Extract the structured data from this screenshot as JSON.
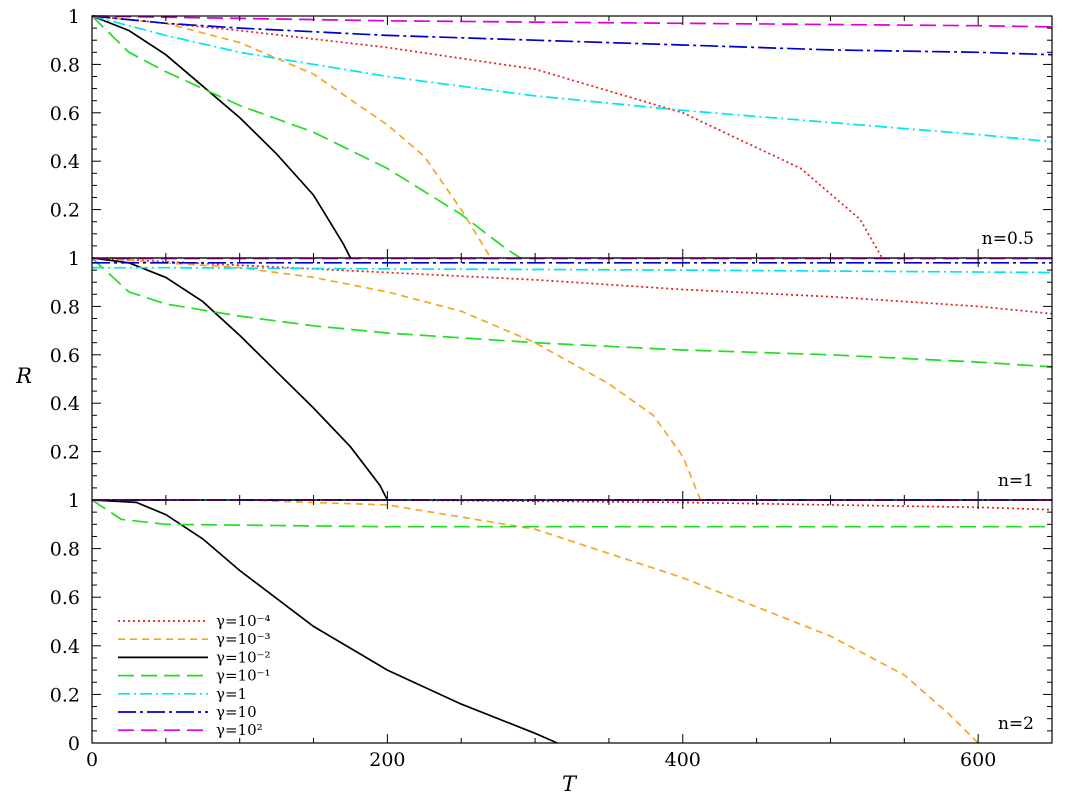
{
  "chart_data": {
    "type": "line",
    "xlabel": "T",
    "ylabel": "R",
    "xlim": [
      0,
      650
    ],
    "x_ticks": [
      "0",
      "200",
      "400",
      "600"
    ],
    "y_ticks": [
      "0",
      "0.2",
      "0.4",
      "0.6",
      "0.8",
      "1"
    ],
    "legend_position": "bottom-left of lowest panel",
    "legend": [
      {
        "label": "γ=10⁻⁴",
        "color": "#e31a1c",
        "dash": "dotted"
      },
      {
        "label": "γ=10⁻³",
        "color": "#f5a623",
        "dash": "short-dash"
      },
      {
        "label": "γ=10⁻²",
        "color": "#000000",
        "dash": "solid"
      },
      {
        "label": "γ=10⁻¹",
        "color": "#22dd22",
        "dash": "long-dash"
      },
      {
        "label": "γ=1",
        "color": "#00e5ee",
        "dash": "dash-dot"
      },
      {
        "label": "γ=10",
        "color": "#0000cc",
        "dash": "long-dash-dot"
      },
      {
        "label": "γ=10²",
        "color": "#dd00dd",
        "dash": "long-dash"
      }
    ],
    "panels": [
      {
        "label": "n=0.5",
        "ylim": [
          0,
          1
        ],
        "series": [
          {
            "legend_index": 0,
            "x": [
              0,
              100,
              200,
              300,
              400,
              480,
              520,
              535
            ],
            "y": [
              1,
              0.94,
              0.87,
              0.78,
              0.6,
              0.37,
              0.16,
              0.0
            ]
          },
          {
            "legend_index": 1,
            "x": [
              0,
              50,
              100,
              150,
              200,
              225,
              250,
              265,
              270
            ],
            "y": [
              1,
              0.97,
              0.89,
              0.76,
              0.55,
              0.42,
              0.2,
              0.05,
              0.0
            ]
          },
          {
            "legend_index": 2,
            "x": [
              0,
              25,
              50,
              75,
              100,
              125,
              150,
              170,
              175
            ],
            "y": [
              1,
              0.94,
              0.84,
              0.71,
              0.58,
              0.43,
              0.26,
              0.06,
              0.0
            ]
          },
          {
            "legend_index": 3,
            "x": [
              0,
              25,
              50,
              75,
              100,
              150,
              200,
              250,
              280,
              290
            ],
            "y": [
              1,
              0.85,
              0.77,
              0.7,
              0.63,
              0.52,
              0.37,
              0.18,
              0.04,
              0.0
            ]
          },
          {
            "legend_index": 4,
            "x": [
              0,
              50,
              100,
              200,
              300,
              400,
              500,
              600,
              650
            ],
            "y": [
              1,
              0.92,
              0.85,
              0.75,
              0.67,
              0.61,
              0.56,
              0.51,
              0.48
            ]
          },
          {
            "legend_index": 5,
            "x": [
              0,
              50,
              100,
              200,
              300,
              400,
              500,
              600,
              650
            ],
            "y": [
              1,
              0.97,
              0.95,
              0.92,
              0.9,
              0.88,
              0.86,
              0.85,
              0.84
            ]
          },
          {
            "legend_index": 6,
            "x": [
              0,
              100,
              200,
              300,
              400,
              500,
              600,
              650
            ],
            "y": [
              1,
              0.99,
              0.98,
              0.975,
              0.97,
              0.965,
              0.96,
              0.955
            ]
          }
        ]
      },
      {
        "label": "n=1",
        "ylim": [
          0,
          1
        ],
        "series": [
          {
            "legend_index": 0,
            "x": [
              0,
              100,
              200,
              300,
              400,
              500,
              600,
              650
            ],
            "y": [
              1,
              0.97,
              0.94,
              0.91,
              0.87,
              0.84,
              0.8,
              0.77
            ]
          },
          {
            "legend_index": 1,
            "x": [
              0,
              100,
              150,
              200,
              250,
              300,
              350,
              380,
              400,
              412
            ],
            "y": [
              1,
              0.96,
              0.92,
              0.86,
              0.78,
              0.65,
              0.48,
              0.35,
              0.18,
              0.0
            ]
          },
          {
            "legend_index": 2,
            "x": [
              0,
              25,
              50,
              75,
              100,
              125,
              150,
              175,
              195,
              200
            ],
            "y": [
              1,
              0.98,
              0.92,
              0.82,
              0.68,
              0.53,
              0.38,
              0.22,
              0.06,
              0.0
            ]
          },
          {
            "legend_index": 3,
            "x": [
              0,
              25,
              50,
              100,
              150,
              200,
              300,
              400,
              500,
              600,
              650
            ],
            "y": [
              1,
              0.86,
              0.81,
              0.76,
              0.72,
              0.69,
              0.65,
              0.62,
              0.6,
              0.57,
              0.55
            ]
          },
          {
            "legend_index": 4,
            "x": [
              0,
              50,
              200,
              400,
              650
            ],
            "y": [
              0.96,
              0.96,
              0.955,
              0.95,
              0.94
            ]
          },
          {
            "legend_index": 5,
            "x": [
              0,
              650
            ],
            "y": [
              0.98,
              0.98
            ]
          },
          {
            "legend_index": 6,
            "x": [
              0,
              650
            ],
            "y": [
              0.998,
              0.998
            ]
          }
        ]
      },
      {
        "label": "n=2",
        "ylim": [
          0,
          1
        ],
        "series": [
          {
            "legend_index": 0,
            "x": [
              0,
              200,
              400,
              500,
              600,
              650
            ],
            "y": [
              1,
              1,
              0.99,
              0.98,
              0.97,
              0.96
            ]
          },
          {
            "legend_index": 1,
            "x": [
              0,
              100,
              200,
              300,
              400,
              500,
              550,
              580,
              600
            ],
            "y": [
              1,
              1,
              0.98,
              0.88,
              0.68,
              0.44,
              0.28,
              0.12,
              0.0
            ]
          },
          {
            "legend_index": 2,
            "x": [
              0,
              30,
              50,
              75,
              100,
              150,
              200,
              250,
              300,
              315
            ],
            "y": [
              1,
              0.99,
              0.94,
              0.84,
              0.71,
              0.48,
              0.3,
              0.16,
              0.04,
              0.0
            ]
          },
          {
            "legend_index": 3,
            "x": [
              0,
              20,
              50,
              200,
              400,
              650
            ],
            "y": [
              1,
              0.92,
              0.9,
              0.89,
              0.89,
              0.89
            ]
          },
          {
            "legend_index": 4,
            "x": [
              0,
              650
            ],
            "y": [
              1,
              1
            ]
          },
          {
            "legend_index": 5,
            "x": [
              0,
              650
            ],
            "y": [
              1,
              1
            ]
          },
          {
            "legend_index": 6,
            "x": [
              0,
              650
            ],
            "y": [
              1,
              1
            ]
          }
        ]
      }
    ]
  }
}
